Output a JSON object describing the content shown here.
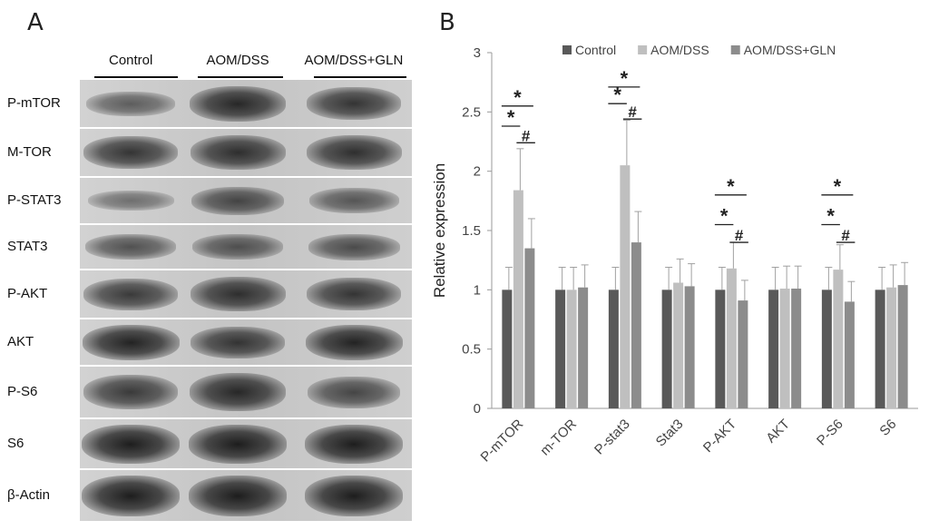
{
  "panel_a": {
    "letter": "A",
    "columns": [
      "Control",
      "AOM/DSS",
      "AOM/DSS+GLN"
    ],
    "rows": [
      {
        "label": "P-mTOR",
        "intensity": [
          0.45,
          0.9,
          0.8
        ]
      },
      {
        "label": "M-TOR",
        "intensity": [
          0.8,
          0.85,
          0.85
        ]
      },
      {
        "label": "P-STAT3",
        "intensity": [
          0.3,
          0.65,
          0.5
        ]
      },
      {
        "label": "STAT3",
        "intensity": [
          0.55,
          0.55,
          0.6
        ]
      },
      {
        "label": "P-AKT",
        "intensity": [
          0.75,
          0.85,
          0.8
        ]
      },
      {
        "label": "AKT",
        "intensity": [
          0.95,
          0.8,
          0.95
        ]
      },
      {
        "label": "P-S6",
        "intensity": [
          0.75,
          0.9,
          0.65
        ]
      },
      {
        "label": "S6",
        "intensity": [
          1.0,
          1.0,
          1.0
        ]
      },
      {
        "label": "β-Actin",
        "intensity": [
          1.0,
          1.0,
          1.0
        ]
      }
    ]
  },
  "chart_data": {
    "panel_letter": "B",
    "type": "bar",
    "categories": [
      "P-mTOR",
      "m-TOR",
      "P-stat3",
      "Stat3",
      "P-AKT",
      "AKT",
      "P-S6",
      "S6"
    ],
    "series": [
      {
        "name": "Control",
        "color": "#595959",
        "values": [
          1.0,
          1.0,
          1.0,
          1.0,
          1.0,
          1.0,
          1.0,
          1.0
        ],
        "errors": [
          0.19,
          0.19,
          0.19,
          0.19,
          0.19,
          0.19,
          0.19,
          0.19
        ]
      },
      {
        "name": "AOM/DSS",
        "color": "#bfbfbf",
        "values": [
          1.84,
          1.0,
          2.05,
          1.06,
          1.18,
          1.01,
          1.17,
          1.02
        ],
        "errors": [
          0.35,
          0.19,
          0.38,
          0.2,
          0.22,
          0.19,
          0.21,
          0.19
        ]
      },
      {
        "name": "AOM/DSS+GLN",
        "color": "#8c8c8c",
        "values": [
          1.35,
          1.02,
          1.4,
          1.03,
          0.91,
          1.01,
          0.9,
          1.04
        ],
        "errors": [
          0.25,
          0.19,
          0.26,
          0.19,
          0.17,
          0.19,
          0.17,
          0.19
        ]
      }
    ],
    "ylabel": "Relative expression",
    "xlabel": "",
    "ylim": [
      0,
      3
    ],
    "yticks": [
      "0",
      "0.5",
      "1",
      "1.5",
      "2",
      "2.5",
      "3"
    ],
    "ytick_values": [
      0,
      0.5,
      1,
      1.5,
      2,
      2.5,
      3
    ],
    "legend_position": "top",
    "grid": false,
    "significance": [
      {
        "category": 0,
        "marks": [
          {
            "symbol": "*",
            "y": 2.55,
            "span": "control-gln"
          },
          {
            "symbol": "*",
            "y": 2.38,
            "span": "control-aom"
          },
          {
            "symbol": "#",
            "y": 2.24,
            "span": "aom-gln"
          }
        ]
      },
      {
        "category": 2,
        "marks": [
          {
            "symbol": "*",
            "y": 2.71,
            "span": "control-gln"
          },
          {
            "symbol": "*",
            "y": 2.57,
            "span": "control-aom"
          },
          {
            "symbol": "#",
            "y": 2.44,
            "span": "aom-gln"
          }
        ]
      },
      {
        "category": 4,
        "marks": [
          {
            "symbol": "*",
            "y": 1.8,
            "span": "control-gln"
          },
          {
            "symbol": "*",
            "y": 1.55,
            "span": "control-aom"
          },
          {
            "symbol": "#",
            "y": 1.4,
            "span": "aom-gln"
          }
        ]
      },
      {
        "category": 6,
        "marks": [
          {
            "symbol": "*",
            "y": 1.8,
            "span": "control-gln"
          },
          {
            "symbol": "*",
            "y": 1.55,
            "span": "control-aom"
          },
          {
            "symbol": "#",
            "y": 1.4,
            "span": "aom-gln"
          }
        ]
      }
    ]
  }
}
